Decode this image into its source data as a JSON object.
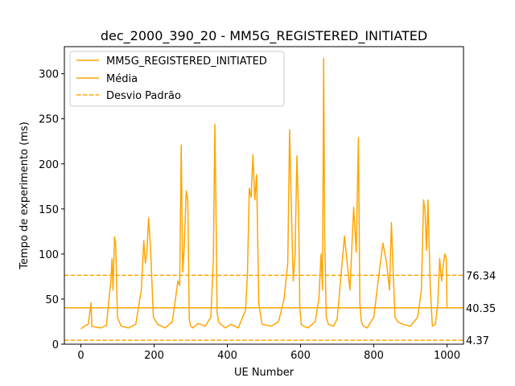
{
  "chart_data": {
    "type": "line",
    "title": "dec_2000_390_20 - MM5G_REGISTERED_INITIATED",
    "xlabel": "UE Number",
    "ylabel": "Tempo de experimento (ms)",
    "xlim": [
      -45,
      1045
    ],
    "ylim": [
      0,
      330
    ],
    "x_ticks": [
      0,
      200,
      400,
      600,
      800,
      1000
    ],
    "y_ticks": [
      0,
      50,
      100,
      150,
      200,
      250,
      300
    ],
    "x_tick_labels": [
      "0",
      "200",
      "400",
      "600",
      "800",
      "1000"
    ],
    "y_tick_labels": [
      "0",
      "50",
      "100",
      "150",
      "200",
      "250",
      "300"
    ],
    "grid": false,
    "legend_position": "top-left",
    "color": "#ffa500",
    "series": [
      {
        "name": "MM5G_REGISTERED_INITIATED",
        "style": "solid",
        "x": [
          0,
          10,
          20,
          28,
          30,
          40,
          55,
          70,
          78,
          82,
          85,
          88,
          92,
          95,
          100,
          110,
          130,
          150,
          165,
          172,
          176,
          180,
          185,
          190,
          198,
          210,
          230,
          250,
          265,
          270,
          274,
          278,
          282,
          288,
          292,
          296,
          300,
          306,
          320,
          340,
          355,
          362,
          366,
          369,
          372,
          376,
          382,
          395,
          410,
          430,
          450,
          455,
          460,
          465,
          470,
          475,
          480,
          486,
          495,
          520,
          540,
          555,
          565,
          570,
          575,
          580,
          585,
          590,
          595,
          598,
          602,
          608,
          620,
          640,
          650,
          656,
          660,
          663,
          666,
          670,
          676,
          690,
          700,
          720,
          735,
          745,
          752,
          758,
          762,
          766,
          772,
          782,
          800,
          815,
          825,
          835,
          843,
          848,
          852,
          858,
          865,
          880,
          900,
          920,
          930,
          936,
          940,
          944,
          948,
          954,
          960,
          968,
          975,
          980,
          985,
          990,
          994,
          998,
          1000
        ],
        "y": [
          17,
          20,
          22,
          46,
          20,
          19,
          18,
          21,
          55,
          70,
          95,
          60,
          119,
          112,
          30,
          20,
          18,
          22,
          60,
          115,
          90,
          100,
          140,
          110,
          30,
          22,
          18,
          25,
          70,
          65,
          221,
          80,
          105,
          170,
          160,
          28,
          20,
          18,
          23,
          20,
          30,
          95,
          244,
          150,
          35,
          25,
          22,
          18,
          22,
          18,
          38,
          78,
          173,
          163,
          210,
          160,
          188,
          45,
          22,
          20,
          25,
          50,
          90,
          238,
          150,
          70,
          100,
          209,
          140,
          40,
          22,
          20,
          18,
          25,
          50,
          100,
          60,
          317,
          120,
          30,
          22,
          20,
          28,
          120,
          60,
          152,
          102,
          229,
          45,
          25,
          20,
          18,
          30,
          80,
          112,
          90,
          60,
          135,
          90,
          30,
          25,
          22,
          20,
          30,
          60,
          160,
          148,
          104,
          160,
          65,
          20,
          22,
          45,
          95,
          70,
          88,
          100,
          95,
          40
        ]
      },
      {
        "name": "Média",
        "style": "solid",
        "value": 40.35
      },
      {
        "name": "Desvio Padrão",
        "style": "dashed",
        "values": [
          76.34,
          4.37
        ]
      }
    ],
    "annotations": [
      "76.34",
      "40.35",
      "4.37"
    ]
  }
}
